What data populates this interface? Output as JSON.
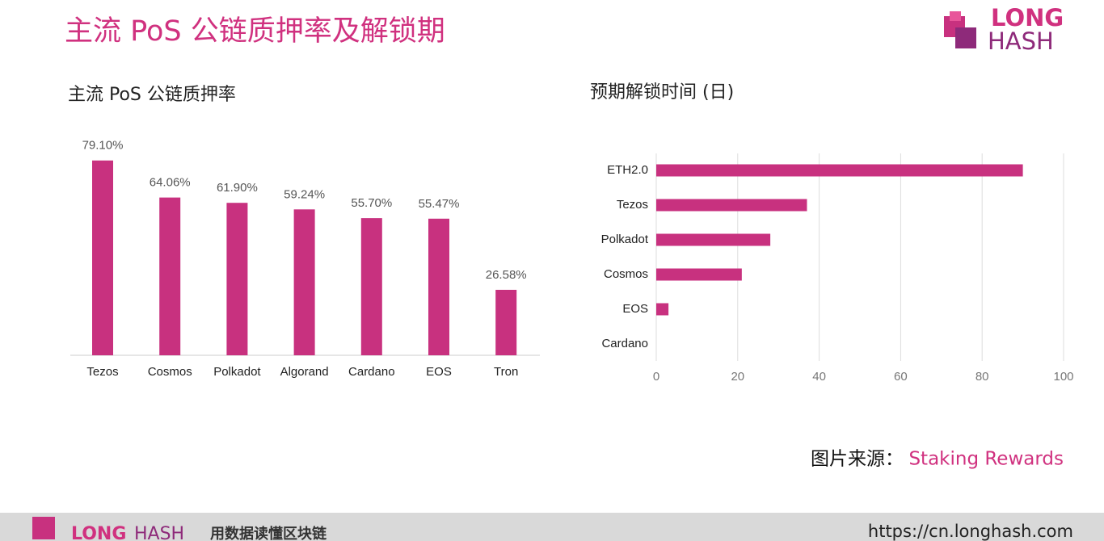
{
  "header": {
    "title": "主流 PoS 公链质押率及解锁期",
    "logo_top": "LONG",
    "logo_bottom": "HASH"
  },
  "chart_data": [
    {
      "type": "bar",
      "title": "主流 PoS 公链质押率",
      "color": "#c8317f",
      "categories": [
        "Tezos",
        "Cosmos",
        "Polkadot",
        "Algorand",
        "Cardano",
        "EOS",
        "Tron"
      ],
      "values": [
        79.1,
        64.06,
        61.9,
        59.24,
        55.7,
        55.47,
        26.58
      ],
      "value_labels": [
        "79.10%",
        "64.06%",
        "61.90%",
        "59.24%",
        "55.70%",
        "55.47%",
        "26.58%"
      ]
    },
    {
      "type": "barh",
      "title": "预期解锁时间 (日)",
      "color": "#c8317f",
      "categories": [
        "ETH2.0",
        "Tezos",
        "Polkadot",
        "Cosmos",
        "EOS",
        "Cardano"
      ],
      "values": [
        90,
        37,
        28,
        21,
        3,
        0
      ],
      "xlim": [
        0,
        100
      ],
      "xticks": [
        0,
        20,
        40,
        60,
        80,
        100
      ],
      "grid": true
    }
  ],
  "source": {
    "label": "图片来源：",
    "name": "Staking Rewards"
  },
  "footer": {
    "logo_left": "LONG",
    "logo_right": "HASH",
    "slogan": "用数据读懂区块链",
    "url": "https://cn.longhash.com"
  }
}
